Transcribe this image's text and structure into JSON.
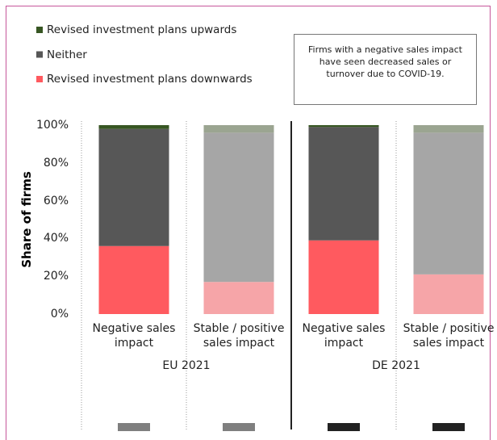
{
  "chart_data": {
    "type": "stacked_bar",
    "y_axis_label": "Share of firms",
    "annotation": "Firms with a negative sales impact have seen decreased sales or turnover due to COVID-19.",
    "categories": [
      "Negative sales impact",
      "Stable / positive sales impact",
      "Negative sales impact",
      "Stable / positive sales impact"
    ],
    "groups": [
      "EU 2021",
      "DE 2021"
    ],
    "series": [
      {
        "name": "Revised investment plans downwards",
        "color": "#ff5a5f",
        "colors": [
          "#ff5a5f",
          "#f6a5a8",
          "#ff5a5f",
          "#f6a5a8"
        ],
        "values": [
          36,
          17,
          39,
          21
        ]
      },
      {
        "name": "Neither",
        "color": "#575757",
        "colors": [
          "#575757",
          "#a6a6a6",
          "#575757",
          "#a6a6a6"
        ],
        "values": [
          62,
          79,
          60,
          75
        ]
      },
      {
        "name": "Revised investment plans upwards",
        "color": "#375623",
        "colors": [
          "#375623",
          "#9ba591",
          "#375623",
          "#9ba591"
        ],
        "values": [
          2,
          4,
          1,
          4
        ]
      }
    ],
    "legend_order": "reverse",
    "ylim": [
      0,
      100
    ],
    "yticks": [
      {
        "value": 0,
        "label": "0%"
      },
      {
        "value": 20,
        "label": "20%"
      },
      {
        "value": 40,
        "label": "40%"
      },
      {
        "value": 60,
        "label": "60%"
      },
      {
        "value": 80,
        "label": "80%"
      },
      {
        "value": 100,
        "label": "100%"
      }
    ]
  }
}
